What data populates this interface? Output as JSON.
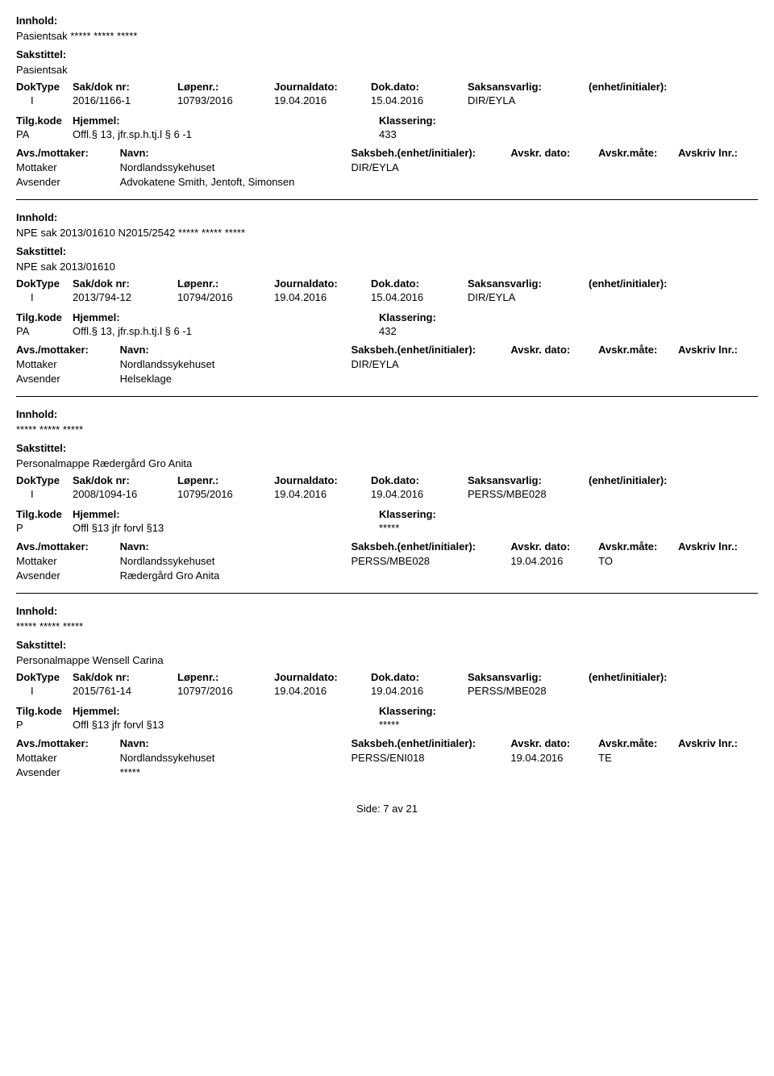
{
  "labels": {
    "innhold": "Innhold:",
    "sakstittel": "Sakstittel:",
    "doktype": "DokType",
    "sakdok": "Sak/dok nr:",
    "lopenr": "Løpenr.:",
    "journaldato": "Journaldato:",
    "dokdato": "Dok.dato:",
    "saksansvarlig": "Saksansvarlig:",
    "enhet": "(enhet/initialer):",
    "tilgkode": "Tilg.kode",
    "hjemmel": "Hjemmel:",
    "klassering": "Klassering:",
    "avsmottaker": "Avs./mottaker:",
    "navn": "Navn:",
    "saksbeh": "Saksbeh.(enhet/initialer):",
    "avskrdato": "Avskr. dato:",
    "avskrmate": "Avskr.måte:",
    "avskrivlnr": "Avskriv lnr.:",
    "mottaker": "Mottaker",
    "avsender": "Avsender"
  },
  "records": [
    {
      "innhold": "Pasientsak ***** ***** *****",
      "sakstittel": "Pasientsak",
      "doktype": "I",
      "sakdok": "2016/1166-1",
      "lopenr": "10793/2016",
      "journaldato": "19.04.2016",
      "dokdato": "15.04.2016",
      "saksansvarlig": "DIR/EYLA",
      "enhet": "",
      "tilgkode": "PA",
      "hjemmel": "Offl.§ 13, jfr.sp.h.tj.l § 6 -1",
      "klassering": "433",
      "parties": [
        {
          "role": "Mottaker",
          "navn": "Nordlandssykehuset",
          "saksbeh": "DIR/EYLA",
          "avskrdato": "",
          "avskrmate": "",
          "avskrivlnr": ""
        },
        {
          "role": "Avsender",
          "navn": "Advokatene Smith, Jentoft, Simonsen",
          "saksbeh": "",
          "avskrdato": "",
          "avskrmate": "",
          "avskrivlnr": ""
        }
      ]
    },
    {
      "innhold": "NPE sak 2013/01610 N2015/2542 ***** ***** *****",
      "sakstittel": "NPE sak 2013/01610",
      "doktype": "I",
      "sakdok": "2013/794-12",
      "lopenr": "10794/2016",
      "journaldato": "19.04.2016",
      "dokdato": "15.04.2016",
      "saksansvarlig": "DIR/EYLA",
      "enhet": "",
      "tilgkode": "PA",
      "hjemmel": "Offl.§ 13, jfr.sp.h.tj.l § 6 -1",
      "klassering": "432",
      "parties": [
        {
          "role": "Mottaker",
          "navn": "Nordlandssykehuset",
          "saksbeh": "DIR/EYLA",
          "avskrdato": "",
          "avskrmate": "",
          "avskrivlnr": ""
        },
        {
          "role": "Avsender",
          "navn": "Helseklage",
          "saksbeh": "",
          "avskrdato": "",
          "avskrmate": "",
          "avskrivlnr": ""
        }
      ]
    },
    {
      "innhold": "***** ***** *****",
      "sakstittel": "Personalmappe Rædergård Gro Anita",
      "doktype": "I",
      "sakdok": "2008/1094-16",
      "lopenr": "10795/2016",
      "journaldato": "19.04.2016",
      "dokdato": "19.04.2016",
      "saksansvarlig": "PERSS/MBE028",
      "enhet": "",
      "tilgkode": "P",
      "hjemmel": "Offl §13 jfr forvl §13",
      "klassering": "*****",
      "parties": [
        {
          "role": "Mottaker",
          "navn": "Nordlandssykehuset",
          "saksbeh": "PERSS/MBE028",
          "avskrdato": "19.04.2016",
          "avskrmate": "TO",
          "avskrivlnr": ""
        },
        {
          "role": "Avsender",
          "navn": "Rædergård Gro Anita",
          "saksbeh": "",
          "avskrdato": "",
          "avskrmate": "",
          "avskrivlnr": ""
        }
      ]
    },
    {
      "innhold": "***** ***** *****",
      "sakstittel": "Personalmappe Wensell Carina",
      "doktype": "I",
      "sakdok": "2015/761-14",
      "lopenr": "10797/2016",
      "journaldato": "19.04.2016",
      "dokdato": "19.04.2016",
      "saksansvarlig": "PERSS/MBE028",
      "enhet": "",
      "tilgkode": "P",
      "hjemmel": "Offl §13 jfr forvl §13",
      "klassering": "*****",
      "parties": [
        {
          "role": "Mottaker",
          "navn": "Nordlandssykehuset",
          "saksbeh": "PERSS/ENI018",
          "avskrdato": "19.04.2016",
          "avskrmate": "TE",
          "avskrivlnr": ""
        },
        {
          "role": "Avsender",
          "navn": "*****",
          "saksbeh": "",
          "avskrdato": "",
          "avskrmate": "",
          "avskrivlnr": ""
        }
      ]
    }
  ],
  "pager": {
    "text": "Side: 7 av 21"
  }
}
